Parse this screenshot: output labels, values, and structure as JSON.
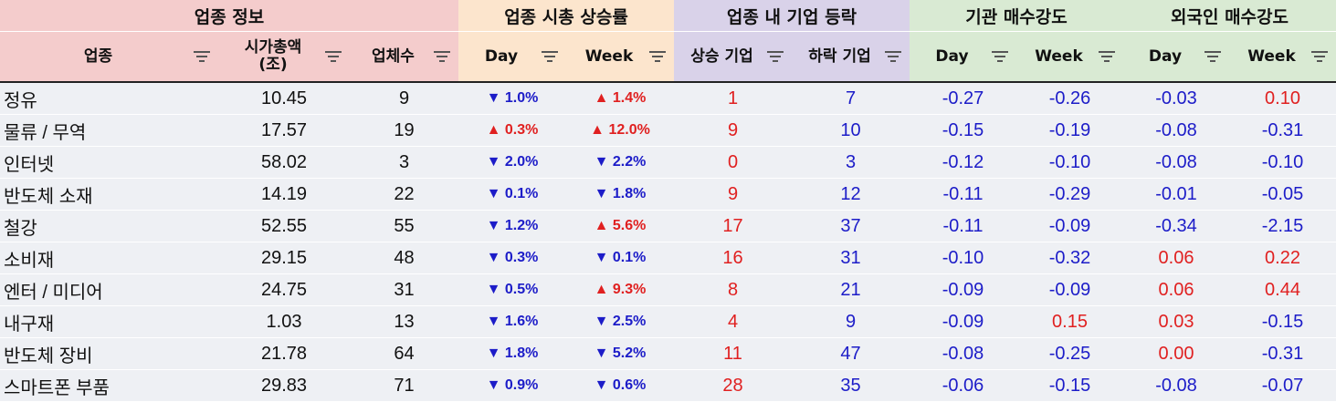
{
  "groups": [
    {
      "label": "업종 정보"
    },
    {
      "label": "업종 시총 상승률"
    },
    {
      "label": "업종 내 기업 등락"
    },
    {
      "label": "기관 매수강도"
    },
    {
      "label": "외국인 매수강도"
    }
  ],
  "columns": [
    {
      "label": "업종"
    },
    {
      "label": "시가총액",
      "sub": "(조)"
    },
    {
      "label": "업체수"
    },
    {
      "label": "Day"
    },
    {
      "label": "Week"
    },
    {
      "label": "상승 기업"
    },
    {
      "label": "하락 기업"
    },
    {
      "label": "Day"
    },
    {
      "label": "Week"
    },
    {
      "label": "Day"
    },
    {
      "label": "Week"
    }
  ],
  "rows": [
    {
      "name": "정유",
      "cap": "10.45",
      "count": "9",
      "day": "▼ 1.0%",
      "week": "▲ 1.4%",
      "up": "1",
      "down": "7",
      "inst_day": "-0.27",
      "inst_week": "-0.26",
      "frgn_day": "-0.03",
      "frgn_week": "0.10"
    },
    {
      "name": "물류 / 무역",
      "cap": "17.57",
      "count": "19",
      "day": "▲ 0.3%",
      "week": "▲ 12.0%",
      "up": "9",
      "down": "10",
      "inst_day": "-0.15",
      "inst_week": "-0.19",
      "frgn_day": "-0.08",
      "frgn_week": "-0.31"
    },
    {
      "name": "인터넷",
      "cap": "58.02",
      "count": "3",
      "day": "▼ 2.0%",
      "week": "▼ 2.2%",
      "up": "0",
      "down": "3",
      "inst_day": "-0.12",
      "inst_week": "-0.10",
      "frgn_day": "-0.08",
      "frgn_week": "-0.10"
    },
    {
      "name": "반도체 소재",
      "cap": "14.19",
      "count": "22",
      "day": "▼ 0.1%",
      "week": "▼ 1.8%",
      "up": "9",
      "down": "12",
      "inst_day": "-0.11",
      "inst_week": "-0.29",
      "frgn_day": "-0.01",
      "frgn_week": "-0.05"
    },
    {
      "name": "철강",
      "cap": "52.55",
      "count": "55",
      "day": "▼ 1.2%",
      "week": "▲ 5.6%",
      "up": "17",
      "down": "37",
      "inst_day": "-0.11",
      "inst_week": "-0.09",
      "frgn_day": "-0.34",
      "frgn_week": "-2.15"
    },
    {
      "name": "소비재",
      "cap": "29.15",
      "count": "48",
      "day": "▼ 0.3%",
      "week": "▼ 0.1%",
      "up": "16",
      "down": "31",
      "inst_day": "-0.10",
      "inst_week": "-0.32",
      "frgn_day": "0.06",
      "frgn_week": "0.22"
    },
    {
      "name": "엔터 / 미디어",
      "cap": "24.75",
      "count": "31",
      "day": "▼ 0.5%",
      "week": "▲ 9.3%",
      "up": "8",
      "down": "21",
      "inst_day": "-0.09",
      "inst_week": "-0.09",
      "frgn_day": "0.06",
      "frgn_week": "0.44"
    },
    {
      "name": "내구재",
      "cap": "1.03",
      "count": "13",
      "day": "▼ 1.6%",
      "week": "▼ 2.5%",
      "up": "4",
      "down": "9",
      "inst_day": "-0.09",
      "inst_week": "0.15",
      "frgn_day": "0.03",
      "frgn_week": "-0.15"
    },
    {
      "name": "반도체 장비",
      "cap": "21.78",
      "count": "64",
      "day": "▼ 1.8%",
      "week": "▼ 5.2%",
      "up": "11",
      "down": "47",
      "inst_day": "-0.08",
      "inst_week": "-0.25",
      "frgn_day": "0.00",
      "frgn_week": "-0.31"
    },
    {
      "name": "스마트폰 부품",
      "cap": "29.83",
      "count": "71",
      "day": "▼ 0.9%",
      "week": "▼ 0.6%",
      "up": "28",
      "down": "35",
      "inst_day": "-0.06",
      "inst_week": "-0.15",
      "frgn_day": "-0.08",
      "frgn_week": "-0.07"
    }
  ],
  "colors": {
    "up": "#e02020",
    "down": "#1c1cc8",
    "info_header": "#f4cccc",
    "rate_header": "#fce5cd",
    "count_header": "#d9d2e9",
    "strength_header": "#d9ead3",
    "row_bg": "#eef0f4"
  },
  "icons": {
    "filter": "filter-icon"
  }
}
